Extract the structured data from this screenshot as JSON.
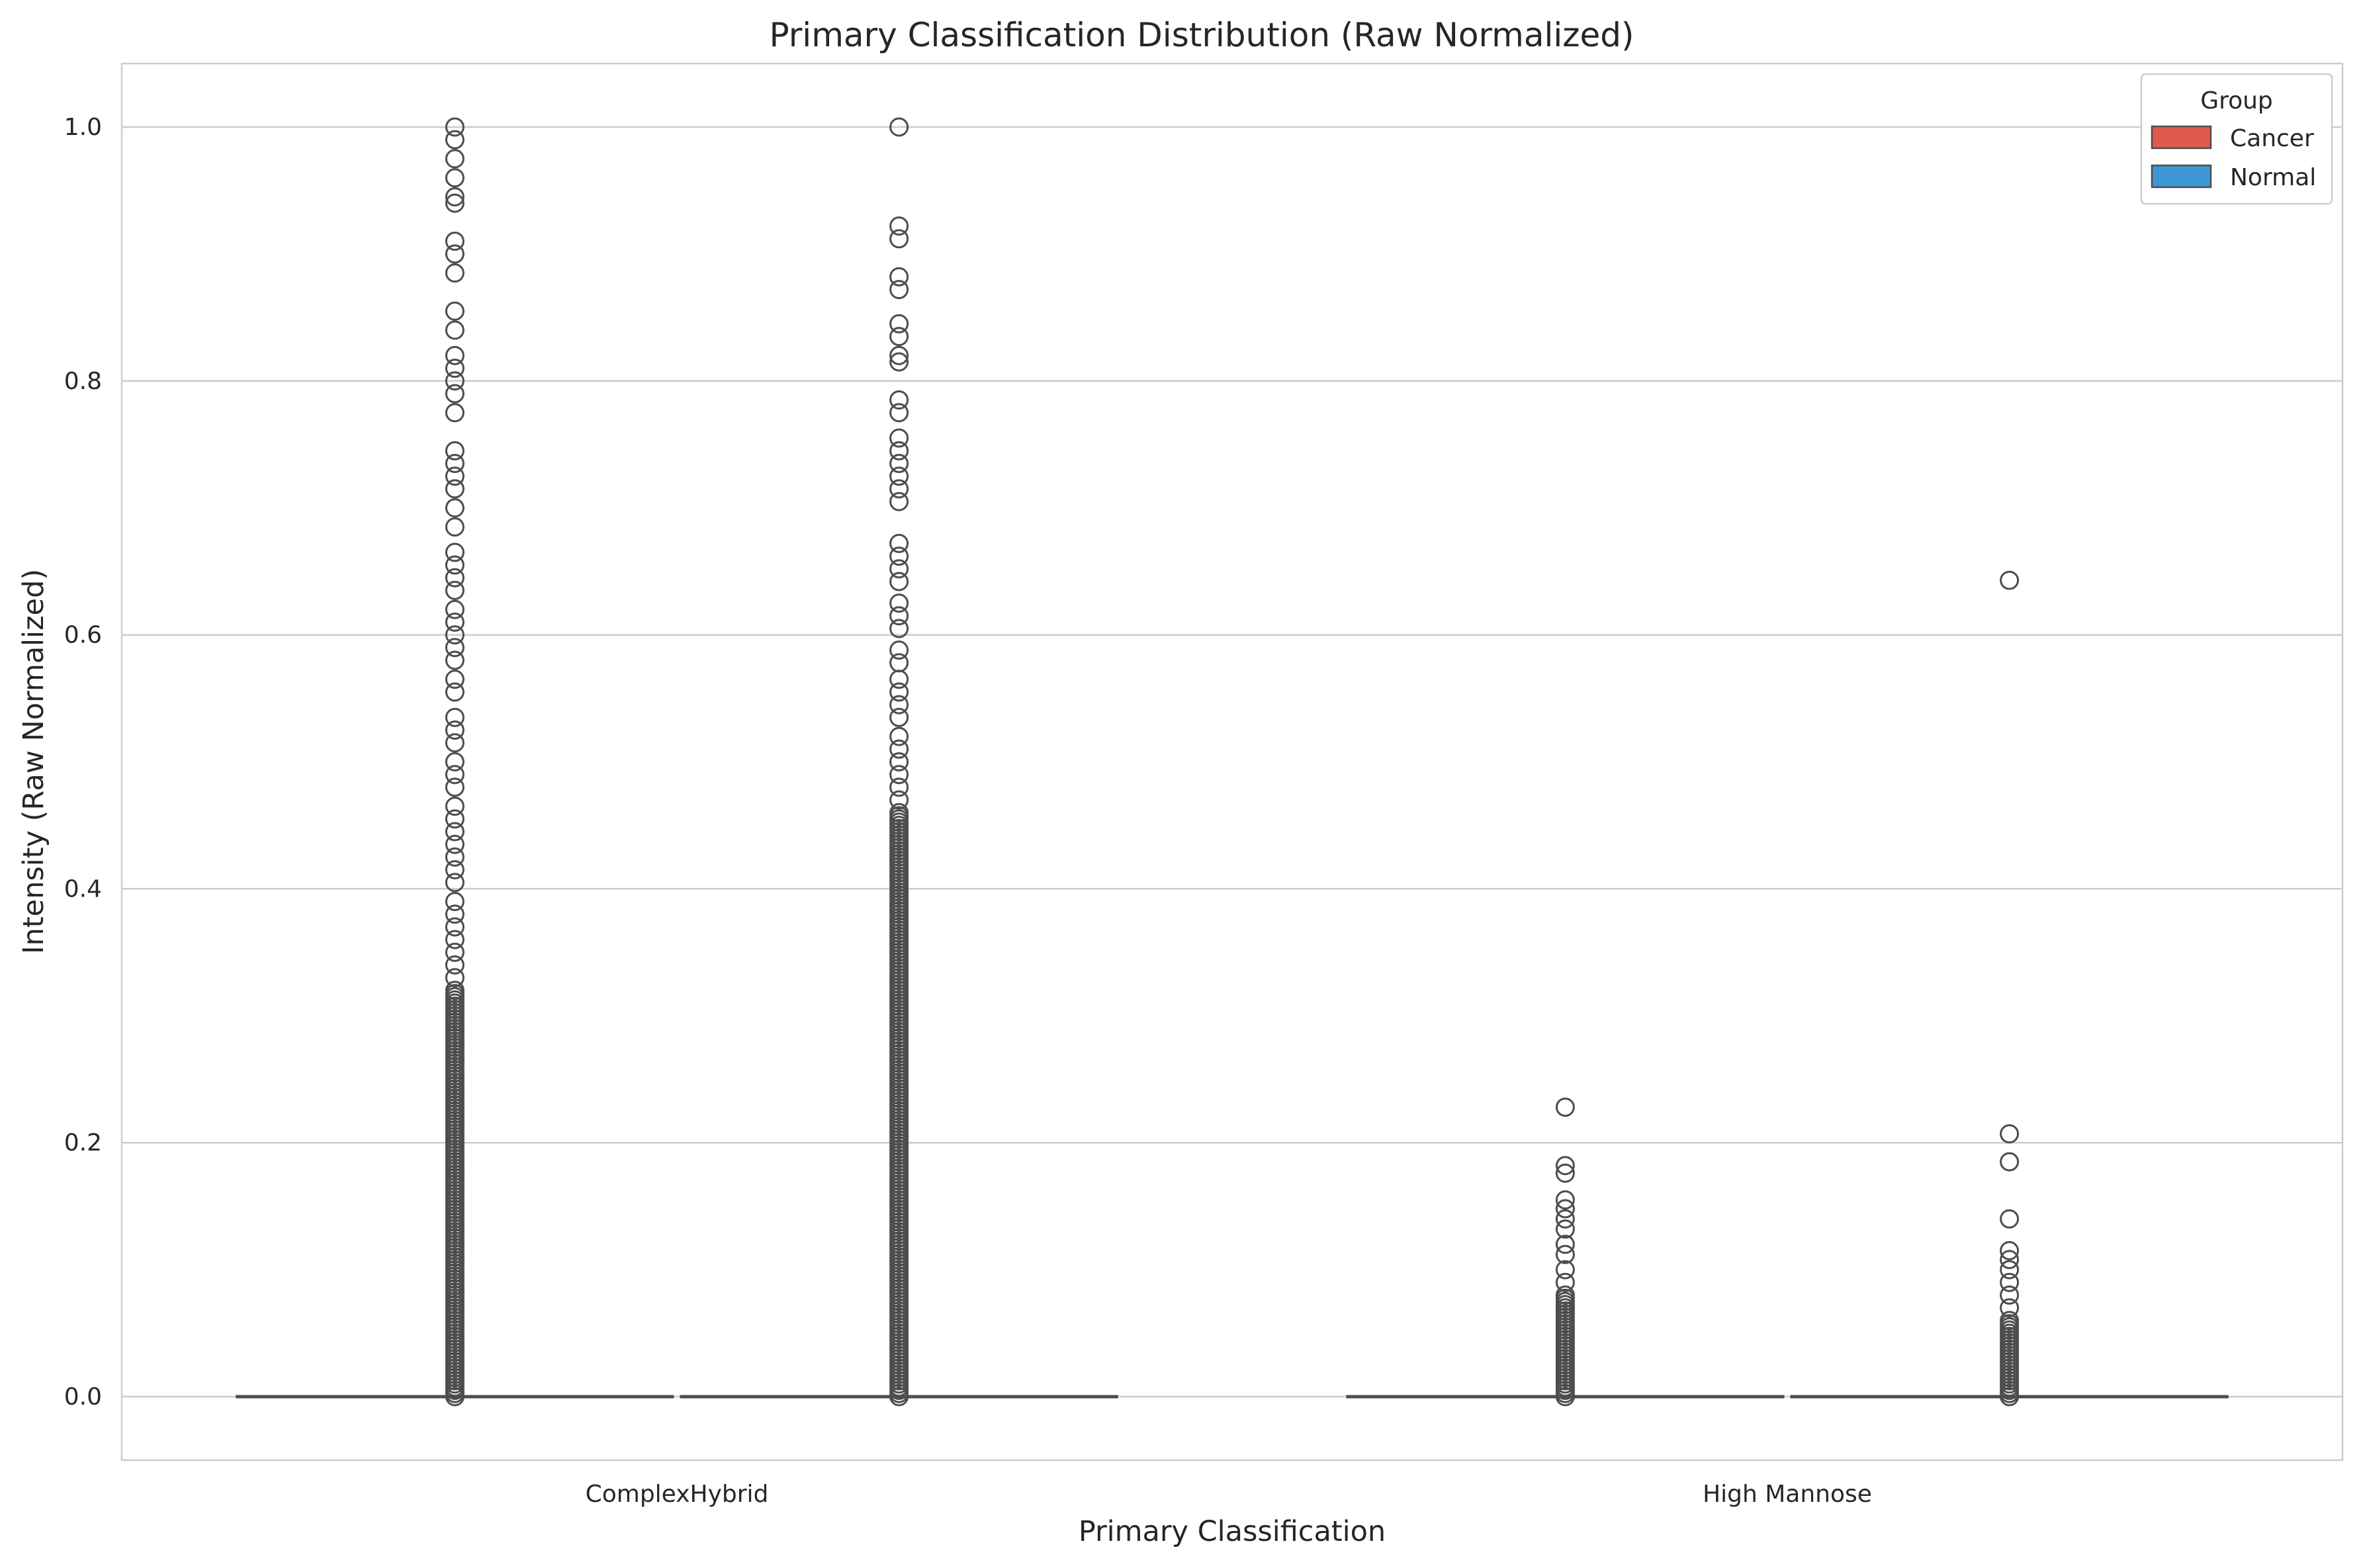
{
  "chart_data": {
    "type": "box",
    "title": "Primary Classification Distribution (Raw Normalized)",
    "xlabel": "Primary Classification",
    "ylabel": "Intensity (Raw Normalized)",
    "categories": [
      "ComplexHybrid",
      "High Mannose"
    ],
    "ylim": [
      -0.05,
      1.05
    ],
    "yticks": [
      0.0,
      0.2,
      0.4,
      0.6,
      0.8,
      1.0
    ],
    "ytick_labels": [
      "0.0",
      "0.2",
      "0.4",
      "0.6",
      "0.8",
      "1.0"
    ],
    "grid": true,
    "legend": {
      "title": "Group",
      "position": "top-right",
      "entries": [
        {
          "label": "Cancer",
          "color": "#e05a4b"
        },
        {
          "label": "Normal",
          "color": "#3d97d3"
        }
      ]
    },
    "series": [
      {
        "name": "Cancer",
        "color": "#e05a4b",
        "boxes": [
          {
            "category": "ComplexHybrid",
            "median": 0.0,
            "q1": 0.0,
            "q3": 0.0,
            "whisker_low": 0.0,
            "whisker_high": 0.0,
            "outlier_dense_range": [
              0.0,
              0.32
            ],
            "outliers": [
              1.0,
              0.99,
              0.975,
              0.96,
              0.945,
              0.94,
              0.91,
              0.9,
              0.885,
              0.855,
              0.84,
              0.82,
              0.81,
              0.8,
              0.79,
              0.775,
              0.745,
              0.735,
              0.725,
              0.715,
              0.7,
              0.685,
              0.665,
              0.655,
              0.645,
              0.635,
              0.62,
              0.61,
              0.6,
              0.59,
              0.58,
              0.565,
              0.555,
              0.535,
              0.525,
              0.515,
              0.5,
              0.49,
              0.48,
              0.465,
              0.455,
              0.445,
              0.435,
              0.425,
              0.415,
              0.405,
              0.39,
              0.38,
              0.37,
              0.36,
              0.35,
              0.34,
              0.33
            ]
          },
          {
            "category": "High Mannose",
            "median": 0.0,
            "q1": 0.0,
            "q3": 0.0,
            "whisker_low": 0.0,
            "whisker_high": 0.0,
            "outlier_dense_range": [
              0.0,
              0.08
            ],
            "outliers": [
              0.228,
              0.182,
              0.176,
              0.155,
              0.148,
              0.14,
              0.132,
              0.12,
              0.112,
              0.1,
              0.09
            ]
          }
        ]
      },
      {
        "name": "Normal",
        "color": "#3d97d3",
        "boxes": [
          {
            "category": "ComplexHybrid",
            "median": 0.0,
            "q1": 0.0,
            "q3": 0.0,
            "whisker_low": 0.0,
            "whisker_high": 0.0,
            "outlier_dense_range": [
              0.0,
              0.46
            ],
            "outliers": [
              1.0,
              0.922,
              0.912,
              0.882,
              0.872,
              0.845,
              0.835,
              0.82,
              0.815,
              0.785,
              0.775,
              0.755,
              0.745,
              0.735,
              0.725,
              0.715,
              0.705,
              0.672,
              0.662,
              0.652,
              0.642,
              0.625,
              0.615,
              0.605,
              0.588,
              0.578,
              0.565,
              0.555,
              0.545,
              0.535,
              0.52,
              0.51,
              0.5,
              0.49,
              0.48,
              0.47
            ]
          },
          {
            "category": "High Mannose",
            "median": 0.0,
            "q1": 0.0,
            "q3": 0.0,
            "whisker_low": 0.0,
            "whisker_high": 0.0,
            "outlier_dense_range": [
              0.0,
              0.06
            ],
            "outliers": [
              0.643,
              0.207,
              0.185,
              0.14,
              0.115,
              0.108,
              0.1,
              0.09,
              0.08,
              0.07
            ]
          }
        ]
      }
    ]
  }
}
